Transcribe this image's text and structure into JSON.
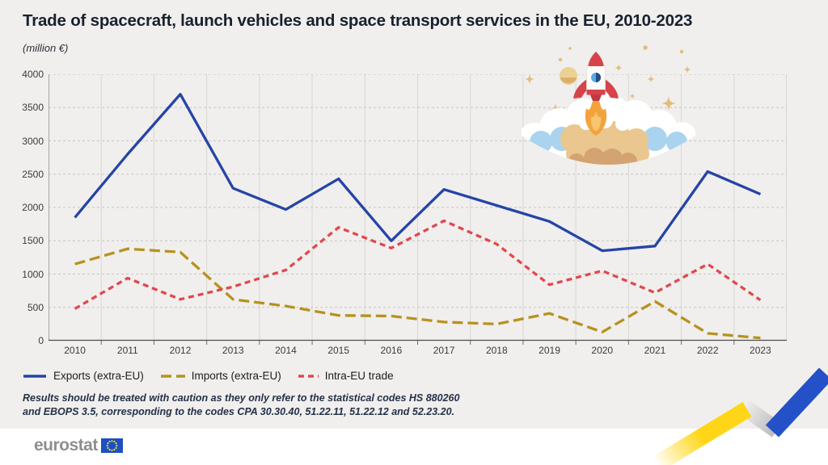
{
  "header": {
    "title": "Trade of spacecraft, launch vehicles and space transport services in the EU, 2010-2023",
    "subtitle": "(million €)"
  },
  "chart_data": {
    "type": "line",
    "categories": [
      "2010",
      "2011",
      "2012",
      "2013",
      "2014",
      "2015",
      "2016",
      "2017",
      "2018",
      "2019",
      "2020",
      "2021",
      "2022",
      "2023"
    ],
    "series": [
      {
        "name": "Exports (extra-EU)",
        "color": "#2644A7",
        "style": "solid",
        "values": [
          1850,
          2800,
          3700,
          2290,
          1970,
          2430,
          1500,
          2270,
          2030,
          1790,
          1350,
          1420,
          2540,
          2200
        ]
      },
      {
        "name": "Imports (extra-EU)",
        "color": "#B6921E",
        "style": "dashed-long",
        "values": [
          1150,
          1380,
          1330,
          620,
          520,
          380,
          370,
          280,
          250,
          410,
          130,
          590,
          110,
          40
        ]
      },
      {
        "name": "Intra-EU trade",
        "color": "#E0484F",
        "style": "dashed-short",
        "values": [
          480,
          940,
          620,
          810,
          1060,
          1700,
          1390,
          1800,
          1450,
          840,
          1050,
          720,
          1150,
          610
        ]
      }
    ],
    "title": "Trade of spacecraft, launch vehicles and space transport services in the EU, 2010-2023",
    "xlabel": "",
    "ylabel": "(million €)",
    "ylim": [
      0,
      4000
    ],
    "yticks": [
      0,
      500,
      1000,
      1500,
      2000,
      2500,
      3000,
      3500,
      4000
    ],
    "grid": true,
    "legend_position": "bottom-left"
  },
  "footnote": {
    "line1": "Results should be treated with caution as they only refer to the statistical codes HS 880260",
    "line2": "and EBOPS 3.5, corresponding to the codes CPA 30.30.40, 51.22.11, 51.22.12 and 52.23.20."
  },
  "footer": {
    "logo_text": "eurostat"
  },
  "decor": {
    "flag_blue": "#1D50C0",
    "star_yellow": "#FFD617",
    "ribbon_colors": [
      "#FFD617",
      "#C8C8C8",
      "#2451C7"
    ]
  }
}
